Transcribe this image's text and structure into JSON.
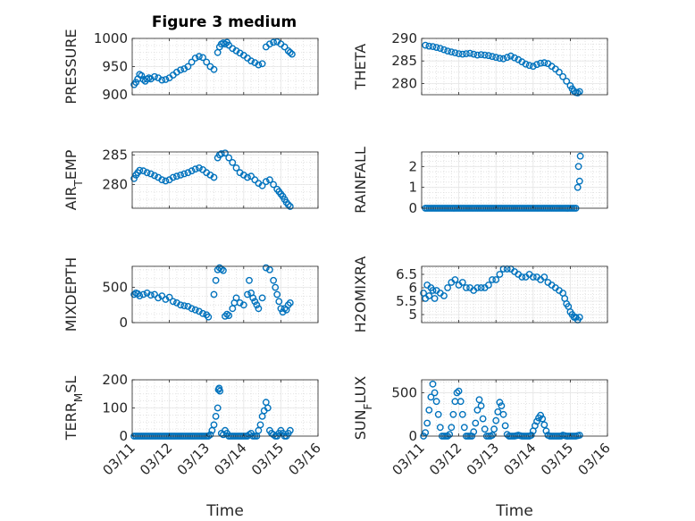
{
  "figure": {
    "title": "Figure 3 medium",
    "marker_color": "#0072BD",
    "axes_color": "#262626",
    "grid_color": "#dcdcdc"
  },
  "chart_data": [
    {
      "type": "scatter",
      "ylabel": "PRESSURE",
      "ylim": [
        900,
        1000
      ],
      "yticks": [
        900,
        950,
        1000
      ],
      "grid": true,
      "x": [
        11.05,
        11.1,
        11.15,
        11.2,
        11.25,
        11.3,
        11.35,
        11.4,
        11.45,
        11.5,
        11.6,
        11.7,
        11.8,
        11.9,
        12.0,
        12.1,
        12.2,
        12.3,
        12.4,
        12.5,
        12.6,
        12.7,
        12.8,
        12.9,
        13.0,
        13.1,
        13.2,
        13.3,
        13.35,
        13.4,
        13.45,
        13.5,
        13.55,
        13.6,
        13.7,
        13.8,
        13.9,
        14.0,
        14.1,
        14.2,
        14.3,
        14.4,
        14.5,
        14.6,
        14.7,
        14.8,
        14.9,
        15.0,
        15.1,
        15.2,
        15.25,
        15.3
      ],
      "y": [
        918,
        922,
        928,
        936,
        934,
        927,
        924,
        928,
        930,
        928,
        932,
        930,
        926,
        927,
        930,
        935,
        940,
        944,
        946,
        950,
        958,
        965,
        968,
        966,
        958,
        950,
        945,
        975,
        985,
        990,
        992,
        990,
        993,
        988,
        982,
        978,
        974,
        970,
        965,
        960,
        957,
        953,
        955,
        985,
        990,
        993,
        994,
        990,
        985,
        978,
        975,
        972
      ]
    },
    {
      "type": "scatter",
      "ylabel": "THETA",
      "ylim": [
        277.5,
        290
      ],
      "yticks": [
        280,
        285,
        290
      ],
      "grid": true,
      "x": [
        11.1,
        11.2,
        11.3,
        11.4,
        11.5,
        11.6,
        11.7,
        11.8,
        11.9,
        12.0,
        12.1,
        12.2,
        12.3,
        12.4,
        12.5,
        12.6,
        12.7,
        12.8,
        12.9,
        13.0,
        13.1,
        13.2,
        13.3,
        13.4,
        13.5,
        13.6,
        13.7,
        13.8,
        13.9,
        14.0,
        14.1,
        14.2,
        14.3,
        14.4,
        14.5,
        14.6,
        14.7,
        14.8,
        14.9,
        15.0,
        15.05,
        15.1,
        15.15,
        15.2,
        15.25
      ],
      "y": [
        288.5,
        288.3,
        288.2,
        288.0,
        287.8,
        287.5,
        287.2,
        287.0,
        286.8,
        286.6,
        286.5,
        286.6,
        286.7,
        286.5,
        286.3,
        286.4,
        286.3,
        286.2,
        286.0,
        285.8,
        285.6,
        285.5,
        285.8,
        286.1,
        285.7,
        285.3,
        284.8,
        284.3,
        284.0,
        283.8,
        284.2,
        284.5,
        284.6,
        284.4,
        283.8,
        283.2,
        282.5,
        281.5,
        280.5,
        279.5,
        278.8,
        278.3,
        278.0,
        277.9,
        278.2
      ]
    },
    {
      "type": "scatter",
      "ylabel": "AIR_TEMP",
      "ylim": [
        276,
        285.5
      ],
      "yticks": [
        280,
        285
      ],
      "grid": true,
      "x": [
        11.05,
        11.1,
        11.15,
        11.2,
        11.3,
        11.4,
        11.5,
        11.6,
        11.7,
        11.8,
        11.9,
        12.0,
        12.1,
        12.2,
        12.3,
        12.4,
        12.5,
        12.6,
        12.7,
        12.8,
        12.9,
        13.0,
        13.1,
        13.2,
        13.3,
        13.35,
        13.4,
        13.5,
        13.6,
        13.7,
        13.8,
        13.9,
        14.0,
        14.1,
        14.2,
        14.3,
        14.4,
        14.5,
        14.6,
        14.7,
        14.8,
        14.9,
        14.95,
        15.0,
        15.05,
        15.1,
        15.15,
        15.2,
        15.25
      ],
      "y": [
        281,
        281.6,
        282,
        282.4,
        282.3,
        282.0,
        281.8,
        281.5,
        281.2,
        280.8,
        280.6,
        280.8,
        281.2,
        281.4,
        281.6,
        281.8,
        282.0,
        282.3,
        282.6,
        282.8,
        282.5,
        282.0,
        281.6,
        281.2,
        284.5,
        285.0,
        285.2,
        285.3,
        284.5,
        283.7,
        282.8,
        282.0,
        281.6,
        281.2,
        281.4,
        280.8,
        280.2,
        279.8,
        280.5,
        280.8,
        280.0,
        279.2,
        278.8,
        278.4,
        278.0,
        277.5,
        277.0,
        276.6,
        276.3
      ]
    },
    {
      "type": "scatter",
      "ylabel": "RAINFALL",
      "ylim": [
        0,
        2.7
      ],
      "yticks": [
        0,
        1,
        2
      ],
      "grid": true,
      "x": [
        11.1,
        11.15,
        11.2,
        11.25,
        11.3,
        11.35,
        11.4,
        11.45,
        11.5,
        11.55,
        11.6,
        11.65,
        11.7,
        11.75,
        11.8,
        11.85,
        11.9,
        11.95,
        12.0,
        12.05,
        12.1,
        12.15,
        12.2,
        12.25,
        12.3,
        12.35,
        12.4,
        12.45,
        12.5,
        12.55,
        12.6,
        12.65,
        12.7,
        12.75,
        12.8,
        12.85,
        12.9,
        12.95,
        13.0,
        13.05,
        13.1,
        13.15,
        13.2,
        13.25,
        13.3,
        13.35,
        13.4,
        13.45,
        13.5,
        13.55,
        13.6,
        13.65,
        13.7,
        13.75,
        13.8,
        13.85,
        13.9,
        13.95,
        14.0,
        14.05,
        14.1,
        14.15,
        14.2,
        14.25,
        14.3,
        14.35,
        14.4,
        14.45,
        14.5,
        14.55,
        14.6,
        14.65,
        14.7,
        14.75,
        14.8,
        14.85,
        14.9,
        14.95,
        15.0,
        15.05,
        15.1,
        15.15,
        15.2,
        15.22,
        15.25,
        15.27
      ],
      "y": [
        0,
        0,
        0,
        0,
        0,
        0,
        0,
        0,
        0,
        0,
        0,
        0,
        0,
        0,
        0,
        0,
        0,
        0,
        0,
        0,
        0,
        0,
        0,
        0,
        0,
        0,
        0,
        0,
        0,
        0,
        0,
        0,
        0,
        0,
        0,
        0,
        0,
        0,
        0,
        0,
        0,
        0,
        0,
        0,
        0,
        0,
        0,
        0,
        0,
        0,
        0,
        0,
        0,
        0,
        0,
        0,
        0,
        0,
        0,
        0,
        0,
        0,
        0,
        0,
        0,
        0,
        0,
        0,
        0,
        0,
        0,
        0,
        0,
        0,
        0,
        0,
        0,
        0,
        0,
        0,
        0,
        0,
        1.0,
        2.0,
        1.3,
        2.5
      ]
    },
    {
      "type": "scatter",
      "ylabel": "MIXDEPTH",
      "ylim": [
        0,
        800
      ],
      "yticks": [
        0,
        500
      ],
      "grid": true,
      "x": [
        11.05,
        11.1,
        11.15,
        11.2,
        11.3,
        11.4,
        11.5,
        11.6,
        11.7,
        11.8,
        11.9,
        12.0,
        12.1,
        12.2,
        12.3,
        12.4,
        12.5,
        12.6,
        12.7,
        12.8,
        12.9,
        13.0,
        13.05,
        13.2,
        13.25,
        13.3,
        13.35,
        13.4,
        13.45,
        13.5,
        13.55,
        13.6,
        13.7,
        13.75,
        13.8,
        13.9,
        14.0,
        14.1,
        14.15,
        14.2,
        14.25,
        14.3,
        14.35,
        14.4,
        14.5,
        14.6,
        14.7,
        14.8,
        14.85,
        14.9,
        14.95,
        15.0,
        15.05,
        15.1,
        15.15,
        15.2,
        15.25
      ],
      "y": [
        400,
        420,
        410,
        380,
        400,
        420,
        390,
        400,
        350,
        380,
        330,
        360,
        300,
        280,
        250,
        240,
        230,
        200,
        180,
        160,
        130,
        110,
        80,
        400,
        600,
        750,
        780,
        760,
        740,
        90,
        120,
        100,
        200,
        280,
        350,
        280,
        250,
        400,
        600,
        420,
        350,
        300,
        250,
        200,
        350,
        780,
        750,
        600,
        500,
        400,
        300,
        200,
        150,
        200,
        180,
        250,
        280
      ]
    },
    {
      "type": "scatter",
      "ylabel": "H2OMIXRA",
      "ylim": [
        4.7,
        6.8
      ],
      "yticks": [
        5,
        5.5,
        6,
        6.5
      ],
      "grid": true,
      "x": [
        11.05,
        11.1,
        11.15,
        11.2,
        11.25,
        11.3,
        11.35,
        11.4,
        11.5,
        11.6,
        11.7,
        11.8,
        11.9,
        12.0,
        12.1,
        12.2,
        12.3,
        12.4,
        12.5,
        12.6,
        12.7,
        12.8,
        12.9,
        13.0,
        13.1,
        13.2,
        13.3,
        13.4,
        13.5,
        13.6,
        13.7,
        13.8,
        13.9,
        14.0,
        14.1,
        14.2,
        14.3,
        14.4,
        14.5,
        14.6,
        14.7,
        14.8,
        14.85,
        14.9,
        14.95,
        15.0,
        15.05,
        15.1,
        15.15,
        15.2,
        15.25
      ],
      "y": [
        5.8,
        5.6,
        6.1,
        5.7,
        6.0,
        5.9,
        5.6,
        5.9,
        5.8,
        5.7,
        6.0,
        6.2,
        6.3,
        6.1,
        6.2,
        6.0,
        6.0,
        5.9,
        6.0,
        6.0,
        6.0,
        6.1,
        6.3,
        6.3,
        6.5,
        6.7,
        6.7,
        6.7,
        6.6,
        6.5,
        6.4,
        6.4,
        6.5,
        6.4,
        6.4,
        6.3,
        6.4,
        6.2,
        6.1,
        6.0,
        5.9,
        5.8,
        5.6,
        5.4,
        5.3,
        5.1,
        5.0,
        4.9,
        4.9,
        4.8,
        4.9
      ]
    },
    {
      "type": "scatter",
      "ylabel": "TERR_MSL",
      "ylim": [
        0,
        200
      ],
      "yticks": [
        0,
        100,
        200
      ],
      "xticks": [
        "03/11",
        "03/12",
        "03/13",
        "03/14",
        "03/15",
        "03/16"
      ],
      "xlabel": "Time",
      "grid": true,
      "x": [
        11.05,
        11.1,
        11.15,
        11.2,
        11.25,
        11.3,
        11.35,
        11.4,
        11.45,
        11.5,
        11.55,
        11.6,
        11.65,
        11.7,
        11.75,
        11.8,
        11.85,
        11.9,
        11.95,
        12.0,
        12.05,
        12.1,
        12.15,
        12.2,
        12.25,
        12.3,
        12.35,
        12.4,
        12.45,
        12.5,
        12.55,
        12.6,
        12.65,
        12.7,
        12.75,
        12.8,
        12.85,
        12.9,
        12.95,
        13.0,
        13.05,
        13.1,
        13.15,
        13.2,
        13.25,
        13.3,
        13.32,
        13.34,
        13.36,
        13.4,
        13.45,
        13.5,
        13.55,
        13.6,
        13.65,
        13.7,
        13.75,
        13.8,
        13.85,
        13.9,
        13.95,
        14.0,
        14.05,
        14.1,
        14.15,
        14.2,
        14.25,
        14.3,
        14.35,
        14.4,
        14.45,
        14.5,
        14.55,
        14.6,
        14.65,
        14.7,
        14.75,
        14.8,
        14.85,
        14.9,
        14.95,
        15.0,
        15.05,
        15.1,
        15.15,
        15.2,
        15.25
      ],
      "y": [
        0,
        0,
        0,
        0,
        0,
        0,
        0,
        0,
        0,
        0,
        0,
        0,
        0,
        0,
        0,
        0,
        0,
        0,
        0,
        0,
        0,
        0,
        0,
        0,
        0,
        0,
        0,
        0,
        0,
        0,
        0,
        0,
        0,
        0,
        0,
        0,
        0,
        0,
        0,
        0,
        0,
        5,
        20,
        40,
        70,
        100,
        165,
        170,
        160,
        10,
        5,
        20,
        10,
        0,
        0,
        0,
        0,
        0,
        0,
        0,
        0,
        0,
        0,
        0,
        5,
        10,
        0,
        0,
        0,
        20,
        40,
        70,
        90,
        120,
        100,
        20,
        10,
        5,
        0,
        0,
        10,
        20,
        10,
        0,
        0,
        10,
        20
      ]
    },
    {
      "type": "scatter",
      "ylabel": "SUN_FLUX",
      "ylim": [
        0,
        650
      ],
      "yticks": [
        0,
        500
      ],
      "xticks": [
        "03/11",
        "03/12",
        "03/13",
        "03/14",
        "03/15",
        "03/16"
      ],
      "xlabel": "Time",
      "grid": true,
      "x": [
        11.05,
        11.1,
        11.15,
        11.2,
        11.25,
        11.3,
        11.35,
        11.4,
        11.45,
        11.5,
        11.55,
        11.6,
        11.65,
        11.7,
        11.75,
        11.8,
        11.85,
        11.9,
        11.95,
        12.0,
        12.05,
        12.1,
        12.15,
        12.2,
        12.25,
        12.3,
        12.35,
        12.4,
        12.45,
        12.5,
        12.55,
        12.6,
        12.65,
        12.7,
        12.75,
        12.8,
        12.85,
        12.9,
        12.95,
        13.0,
        13.05,
        13.1,
        13.15,
        13.2,
        13.25,
        13.3,
        13.35,
        13.4,
        13.45,
        13.5,
        13.55,
        13.6,
        13.65,
        13.7,
        13.75,
        13.8,
        13.85,
        13.9,
        13.95,
        14.0,
        14.05,
        14.1,
        14.15,
        14.2,
        14.25,
        14.3,
        14.35,
        14.4,
        14.45,
        14.5,
        14.55,
        14.6,
        14.65,
        14.7,
        14.75,
        14.8,
        14.85,
        14.9,
        14.95,
        15.0,
        15.05,
        15.1,
        15.15,
        15.2,
        15.25
      ],
      "y": [
        0,
        40,
        150,
        300,
        450,
        600,
        500,
        400,
        250,
        100,
        0,
        0,
        0,
        0,
        20,
        100,
        250,
        400,
        500,
        520,
        400,
        250,
        100,
        0,
        0,
        0,
        0,
        50,
        150,
        300,
        420,
        350,
        200,
        80,
        0,
        0,
        0,
        10,
        80,
        180,
        280,
        390,
        350,
        250,
        120,
        20,
        0,
        0,
        0,
        0,
        5,
        10,
        5,
        0,
        0,
        0,
        0,
        0,
        10,
        60,
        120,
        170,
        210,
        240,
        200,
        130,
        60,
        10,
        0,
        0,
        0,
        0,
        0,
        0,
        0,
        10,
        5,
        0,
        0,
        0,
        0,
        0,
        0,
        5,
        10
      ]
    }
  ]
}
